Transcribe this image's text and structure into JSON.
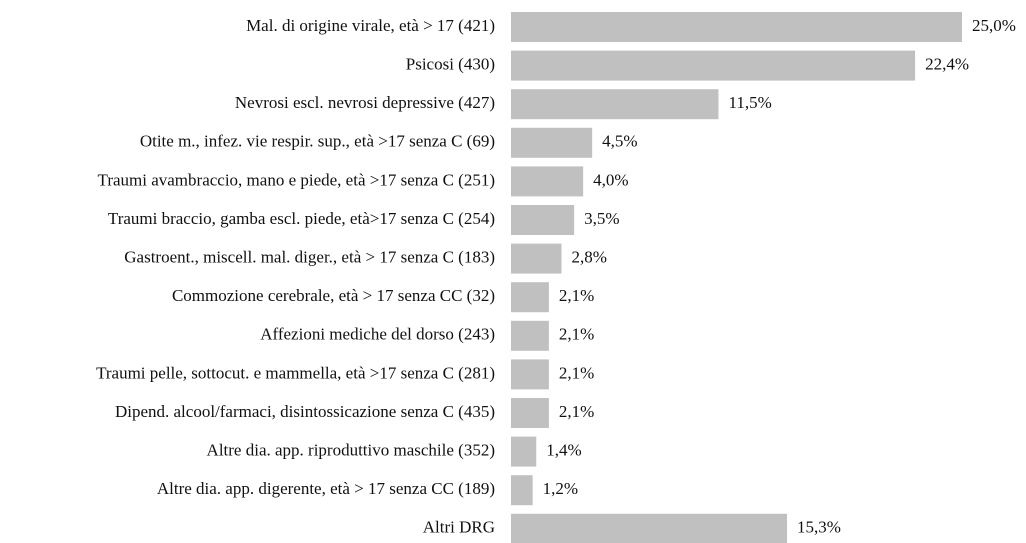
{
  "chart_data": {
    "type": "bar",
    "orientation": "horizontal",
    "categories": [
      "Mal. di origine virale, età > 17 (421)",
      "Psicosi (430)",
      "Nevrosi escl. nevrosi depressive (427)",
      "Otite m., infez. vie respir. sup., età >17 senza C (69)",
      "Traumi avambraccio, mano e piede, età >17 senza C (251)",
      "Traumi braccio, gamba escl. piede, età>17 senza C (254)",
      "Gastroent., miscell. mal. diger., età > 17 senza C (183)",
      "Commozione cerebrale, età > 17 senza CC (32)",
      "Affezioni mediche del dorso (243)",
      "Traumi pelle, sottocut. e mammella, età >17 senza C (281)",
      "Dipend. alcool/farmaci, disintossicazione senza C (435)",
      "Altre dia. app. riproduttivo maschile (352)",
      "Altre dia. app. digerente, età > 17 senza CC (189)",
      "Altri DRG"
    ],
    "values": [
      25.0,
      22.4,
      11.5,
      4.5,
      4.0,
      3.5,
      2.8,
      2.1,
      2.1,
      2.1,
      2.1,
      1.4,
      1.2,
      15.3
    ],
    "value_labels": [
      "25,0%",
      "22,4%",
      "11,5%",
      "4,5%",
      "4,0%",
      "3,5%",
      "2,8%",
      "2,1%",
      "2,1%",
      "2,1%",
      "2,1%",
      "1,4%",
      "1,2%",
      "15,3%"
    ],
    "color": "#c0c0c0"
  }
}
